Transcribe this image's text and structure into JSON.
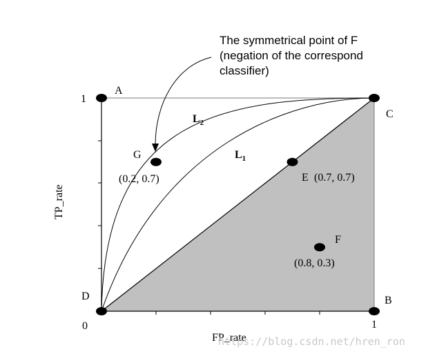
{
  "chart_data": {
    "type": "scatter",
    "title": "",
    "xlabel": "FP_rate",
    "ylabel": "TP_rate",
    "xlim": [
      0,
      1
    ],
    "ylim": [
      0,
      1
    ],
    "tick_labels": {
      "origin": "0",
      "x_end": "1",
      "y_end": "1"
    },
    "points": [
      {
        "id": "A",
        "x": 0,
        "y": 1,
        "label": "A",
        "coord_label": ""
      },
      {
        "id": "B",
        "x": 1,
        "y": 0,
        "label": "B",
        "coord_label": ""
      },
      {
        "id": "C",
        "x": 1,
        "y": 1,
        "label": "C",
        "coord_label": ""
      },
      {
        "id": "D",
        "x": 0,
        "y": 0,
        "label": "D",
        "coord_label": ""
      },
      {
        "id": "E",
        "x": 0.7,
        "y": 0.7,
        "label": "E",
        "coord_label": "(0.7, 0.7)"
      },
      {
        "id": "F",
        "x": 0.8,
        "y": 0.3,
        "label": "F",
        "coord_label": "(0.8, 0.3)"
      },
      {
        "id": "G",
        "x": 0.2,
        "y": 0.7,
        "label": "G",
        "coord_label": "(0.2, 0.7)"
      }
    ],
    "curves": [
      {
        "name": "L1",
        "label": "L",
        "subscript": "1"
      },
      {
        "name": "L2",
        "label": "L",
        "subscript": "2"
      }
    ],
    "shaded_region": "triangle D-B-C below the diagonal",
    "diagonal": "D to C",
    "annotation": {
      "lines": [
        "The symmetrical point of F",
        "(negation of the correspond",
        "classifier)"
      ],
      "arrow_to": "G"
    },
    "grid": false,
    "colors": {
      "shade": "#c0c0c0",
      "stroke": "#000000",
      "frame": "#777777"
    }
  },
  "watermark": "https://blog.csdn.net/hren_ron"
}
